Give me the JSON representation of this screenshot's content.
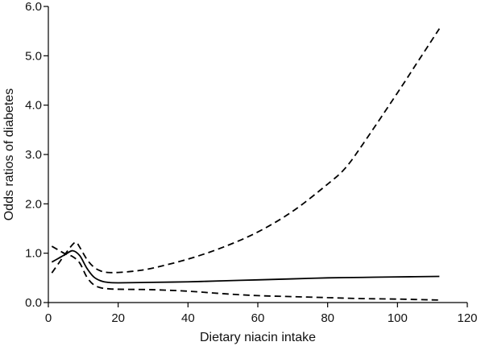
{
  "chart_data": {
    "type": "line",
    "title": "",
    "xlabel": "Dietary niacin intake",
    "ylabel": "Odds ratios of diabetes",
    "xlim": [
      0,
      120
    ],
    "ylim": [
      0,
      6.0
    ],
    "x_ticks": [
      0,
      20,
      40,
      60,
      80,
      100,
      120
    ],
    "x_tick_labels": [
      "0",
      "20",
      "40",
      "60",
      "80",
      "100",
      "120"
    ],
    "y_ticks": [
      0,
      1,
      2,
      3,
      4,
      5,
      6
    ],
    "y_tick_labels": [
      "0.0",
      "1.0",
      "2.0",
      "3.0",
      "4.0",
      "5.0",
      "6.0"
    ],
    "grid": false,
    "legend": "none",
    "series": [
      {
        "style": "solid",
        "points": [
          [
            1,
            0.82
          ],
          [
            3,
            0.9
          ],
          [
            5,
            0.98
          ],
          [
            7,
            1.05
          ],
          [
            9,
            0.95
          ],
          [
            11,
            0.7
          ],
          [
            13,
            0.52
          ],
          [
            15,
            0.44
          ],
          [
            17,
            0.41
          ],
          [
            20,
            0.4
          ],
          [
            30,
            0.41
          ],
          [
            40,
            0.42
          ],
          [
            50,
            0.44
          ],
          [
            60,
            0.46
          ],
          [
            70,
            0.48
          ],
          [
            80,
            0.5
          ],
          [
            90,
            0.51
          ],
          [
            100,
            0.52
          ],
          [
            112,
            0.53
          ]
        ]
      },
      {
        "style": "dashed",
        "points": [
          [
            1,
            0.6
          ],
          [
            3,
            0.8
          ],
          [
            5,
            1.0
          ],
          [
            7,
            1.18
          ],
          [
            8,
            1.22
          ],
          [
            9,
            1.12
          ],
          [
            11,
            0.88
          ],
          [
            13,
            0.72
          ],
          [
            15,
            0.64
          ],
          [
            17,
            0.61
          ],
          [
            20,
            0.61
          ],
          [
            25,
            0.64
          ],
          [
            30,
            0.7
          ],
          [
            40,
            0.88
          ],
          [
            50,
            1.12
          ],
          [
            60,
            1.43
          ],
          [
            70,
            1.85
          ],
          [
            80,
            2.4
          ],
          [
            85,
            2.72
          ],
          [
            90,
            3.2
          ],
          [
            100,
            4.25
          ],
          [
            106,
            4.9
          ],
          [
            112,
            5.55
          ]
        ]
      },
      {
        "style": "dashed",
        "points": [
          [
            1,
            1.14
          ],
          [
            3,
            1.06
          ],
          [
            5,
            0.98
          ],
          [
            7,
            0.93
          ],
          [
            9,
            0.8
          ],
          [
            11,
            0.52
          ],
          [
            13,
            0.36
          ],
          [
            15,
            0.3
          ],
          [
            17,
            0.28
          ],
          [
            20,
            0.27
          ],
          [
            30,
            0.26
          ],
          [
            40,
            0.23
          ],
          [
            50,
            0.18
          ],
          [
            60,
            0.14
          ],
          [
            70,
            0.12
          ],
          [
            80,
            0.1
          ],
          [
            90,
            0.08
          ],
          [
            100,
            0.07
          ],
          [
            112,
            0.05
          ]
        ]
      }
    ]
  }
}
